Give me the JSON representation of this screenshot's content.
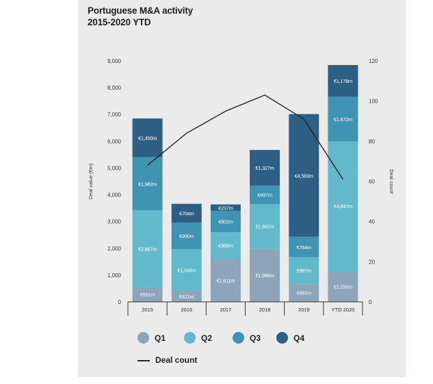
{
  "title_line1": "Portuguese M&A activity",
  "title_line2": "2015-2020 YTD",
  "chart_data": {
    "type": "bar",
    "stacked": true,
    "categories": [
      "2015",
      "2016",
      "2017",
      "2018",
      "2019",
      "YTD 2020"
    ],
    "series": [
      {
        "name": "Q1",
        "color": "#8da5bb",
        "values": [
          551,
          421,
          1611,
          1988,
          681,
          1150
        ],
        "labels": [
          "€551m",
          "€421m",
          "€1,611m",
          "€1,988m",
          "€681m",
          "€1,150m"
        ]
      },
      {
        "name": "Q2",
        "color": "#62b9cc",
        "values": [
          2867,
          1548,
          989,
          1662,
          987,
          4847
        ],
        "labels": [
          "€2,867m",
          "€1,548m",
          "€989m",
          "€1,662m",
          "€987m",
          "€4,847m"
        ]
      },
      {
        "name": "Q3",
        "color": "#3f93b3",
        "values": [
          1982,
          990,
          802,
          697,
          764,
          1672
        ],
        "labels": [
          "€1,982m",
          "€990m",
          "€802m",
          "€697m",
          "€764m",
          "€1,672m"
        ]
      },
      {
        "name": "Q4",
        "color": "#2d5f85",
        "values": [
          1450,
          704,
          237,
          1327,
          4583,
          1178
        ],
        "labels": [
          "€1,450m",
          "€704m",
          "€237m",
          "€1,327m",
          "€4,583m",
          "€1,178m"
        ]
      }
    ],
    "line": {
      "name": "Deal count",
      "color": "#262626",
      "values": [
        68,
        84,
        95,
        103,
        91,
        61
      ]
    },
    "ylabel": "Deal value (€m)",
    "y2label": "Deal count",
    "ylim": [
      0,
      9000
    ],
    "y2lim": [
      0,
      120
    ],
    "yticks": [
      "0",
      "1,000",
      "2,000",
      "3,000",
      "4,000",
      "5,000",
      "6,000",
      "7,000",
      "8,000",
      "9,000"
    ],
    "y2ticks": [
      "0",
      "20",
      "40",
      "60",
      "80",
      "100",
      "120"
    ],
    "legend_position": "bottom"
  }
}
